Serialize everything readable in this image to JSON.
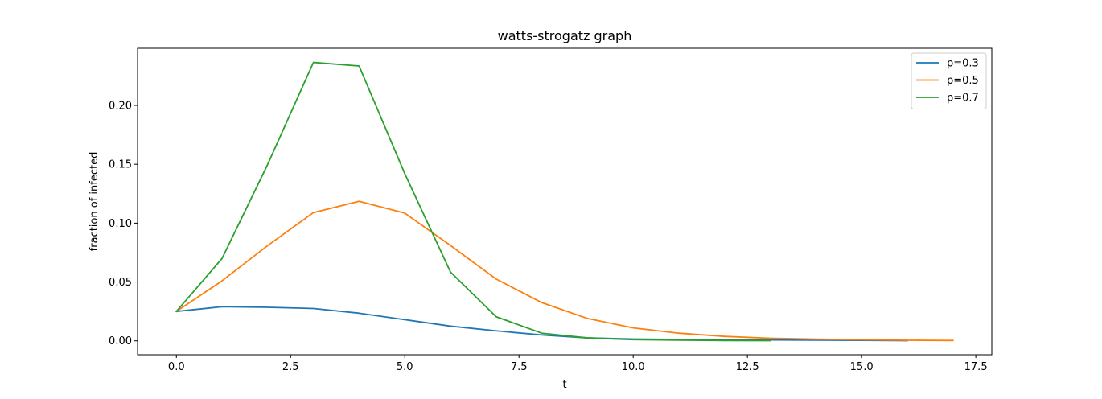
{
  "chart_data": {
    "type": "line",
    "title": "watts-strogatz graph",
    "xlabel": "t",
    "ylabel": "fraction of infected",
    "xlim": [
      -0.85,
      17.85
    ],
    "ylim": [
      -0.0118,
      0.2485
    ],
    "xticks": [
      0.0,
      2.5,
      5.0,
      7.5,
      10.0,
      12.5,
      15.0,
      17.5
    ],
    "xtick_labels": [
      "0.0",
      "2.5",
      "5.0",
      "7.5",
      "10.0",
      "12.5",
      "15.0",
      "17.5"
    ],
    "yticks": [
      0.0,
      0.05,
      0.1,
      0.15,
      0.2
    ],
    "ytick_labels": [
      "0.00",
      "0.05",
      "0.10",
      "0.15",
      "0.20"
    ],
    "grid": false,
    "legend_position": "top-right",
    "series": [
      {
        "name": "p=0.3",
        "color": "#1f77b4",
        "x": [
          0,
          1,
          2,
          3,
          4,
          5,
          6,
          7,
          8,
          9,
          10,
          11,
          12,
          13,
          14,
          15,
          16
        ],
        "y": [
          0.025,
          0.029,
          0.0285,
          0.0275,
          0.0235,
          0.018,
          0.0125,
          0.0085,
          0.005,
          0.0025,
          0.0015,
          0.0012,
          0.001,
          0.0008,
          0.0006,
          0.0004,
          0.0002
        ]
      },
      {
        "name": "p=0.5",
        "color": "#ff7f0e",
        "x": [
          0,
          1,
          2,
          3,
          4,
          5,
          6,
          7,
          8,
          9,
          10,
          11,
          12,
          13,
          14,
          15,
          16,
          17
        ],
        "y": [
          0.025,
          0.051,
          0.081,
          0.109,
          0.1185,
          0.1085,
          0.081,
          0.0525,
          0.0325,
          0.019,
          0.011,
          0.0065,
          0.0038,
          0.0022,
          0.0014,
          0.0009,
          0.0005,
          0.0003
        ]
      },
      {
        "name": "p=0.7",
        "color": "#2ca02c",
        "x": [
          0,
          1,
          2,
          3,
          4,
          5,
          6,
          7,
          8,
          9,
          10,
          11,
          12,
          13
        ],
        "y": [
          0.025,
          0.07,
          0.15,
          0.2365,
          0.2335,
          0.142,
          0.0585,
          0.0205,
          0.0065,
          0.0025,
          0.001,
          0.0006,
          0.0003,
          0.0002
        ]
      }
    ]
  }
}
